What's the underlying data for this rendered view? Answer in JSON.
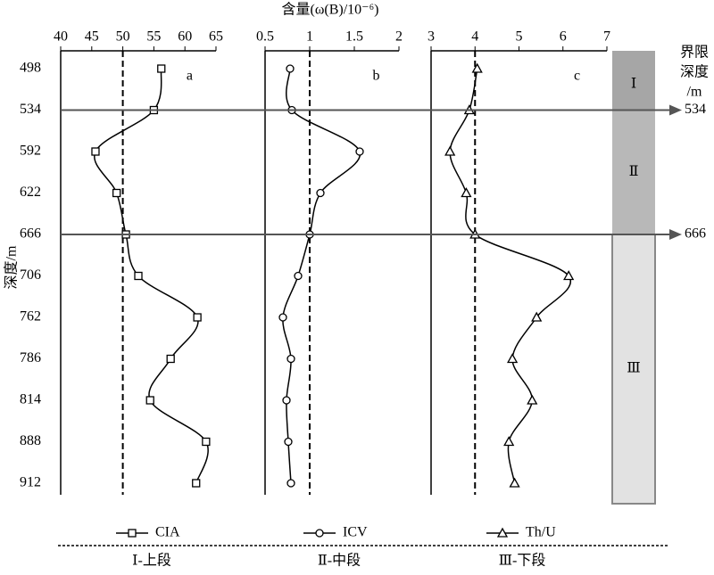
{
  "title": "含量(ω(B)/10⁻⁶)",
  "y_axis": {
    "label": "深度/m",
    "categories": [
      "498",
      "534",
      "592",
      "622",
      "666",
      "706",
      "762",
      "786",
      "814",
      "888",
      "912"
    ]
  },
  "chart_data": [
    {
      "type": "line",
      "title": "a",
      "xlim": [
        40,
        65
      ],
      "xticks": [
        40,
        45,
        50,
        55,
        60,
        65
      ],
      "refline": 50,
      "series": [
        {
          "name": "CIA",
          "marker": "square",
          "color": "#000000",
          "values": [
            56.2,
            55,
            45.6,
            49,
            50.5,
            52.5,
            62,
            57.7,
            54.4,
            63.4,
            61.8
          ]
        }
      ]
    },
    {
      "type": "line",
      "title": "b",
      "xlim": [
        0.5,
        2
      ],
      "xticks": [
        0.5,
        1,
        1.5,
        2
      ],
      "refline": 1,
      "series": [
        {
          "name": "ICV",
          "marker": "circle",
          "color": "#000000",
          "values": [
            0.78,
            0.8,
            1.56,
            1.12,
            1.0,
            0.87,
            0.7,
            0.79,
            0.74,
            0.76,
            0.79
          ]
        }
      ]
    },
    {
      "type": "line",
      "title": "c",
      "xlim": [
        3,
        7
      ],
      "xticks": [
        3,
        4,
        5,
        6,
        7
      ],
      "refline": 4,
      "series": [
        {
          "name": "Th/U",
          "marker": "triangle",
          "color": "#000000",
          "values": [
            4.05,
            3.87,
            3.43,
            3.8,
            4.0,
            6.13,
            5.4,
            4.85,
            5.3,
            4.77,
            4.9
          ]
        }
      ]
    }
  ],
  "stages": {
    "title": [
      "界限",
      "深度",
      "/m"
    ],
    "boundaries": [
      "534",
      "666"
    ],
    "labels": [
      "Ⅰ",
      "Ⅱ",
      "Ⅲ"
    ],
    "colors": [
      "#a6a6a6",
      "#b8b8b8",
      "#e2e2e2"
    ]
  },
  "footer": [
    "Ⅰ-上段",
    "Ⅱ-中段",
    "Ⅲ-下段"
  ]
}
